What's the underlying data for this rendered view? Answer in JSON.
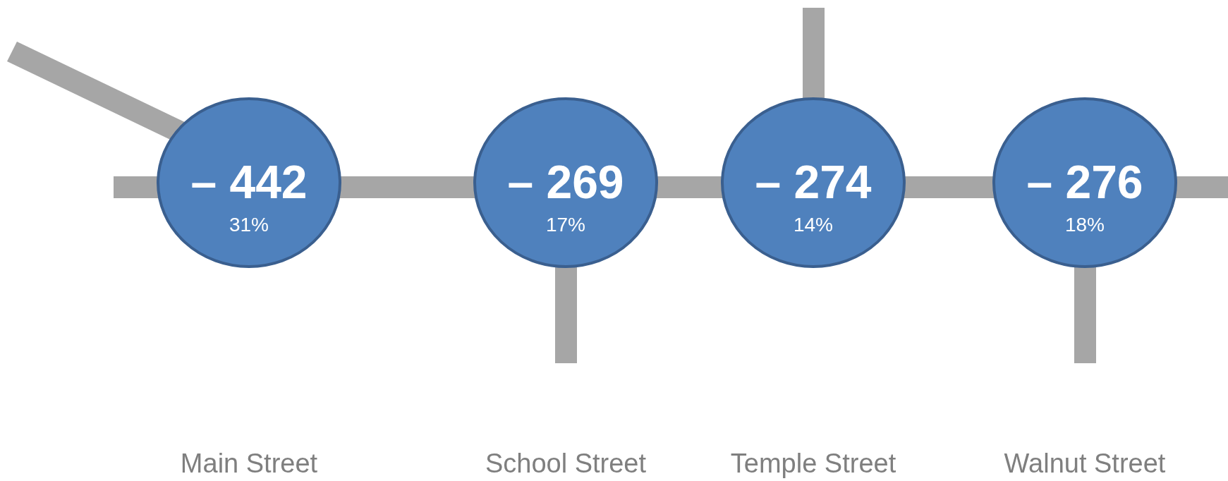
{
  "chart_data": {
    "type": "other",
    "categories": [
      "Main Street",
      "School Street",
      "Temple Street",
      "Walnut Street"
    ],
    "series": [
      {
        "color": "#4f81bd",
        "values": [
          -442,
          -269,
          -274,
          -276
        ],
        "value_labels": [
          "– 442",
          "– 269",
          "– 274",
          "– 276"
        ]
      },
      {
        "values": [
          31,
          17,
          14,
          18
        ],
        "value_labels": [
          "31%",
          "17%",
          "14%",
          "18%"
        ]
      }
    ]
  }
}
